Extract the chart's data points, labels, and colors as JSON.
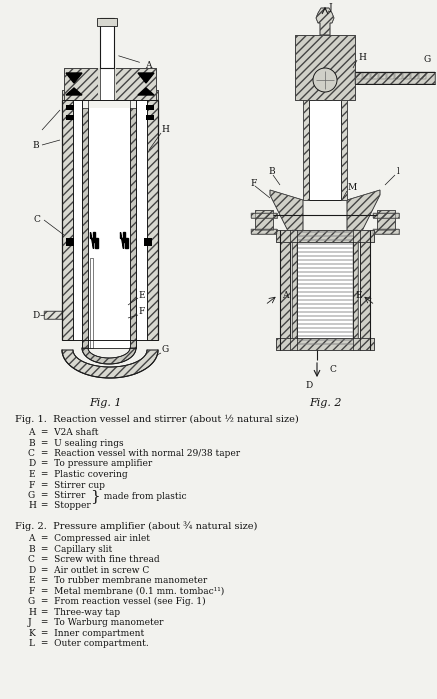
{
  "fig_width": 4.37,
  "fig_height": 6.99,
  "dpi": 100,
  "bg_color": "#f2f2ee",
  "line_color": "#1a1a1a",
  "hatch_color": "#444444",
  "fig1_caption": "Fig. 1",
  "fig2_caption": "Fig. 2",
  "main_caption_1": "Fig. 1.  Reaction vessel and stirrer (about ½ natural size)",
  "legend_1": [
    [
      "A",
      " =  V2A shaft"
    ],
    [
      "B",
      " =  U sealing rings"
    ],
    [
      "C",
      " =  Reaction vessel with normal 29/38 taper"
    ],
    [
      "D",
      " =  To pressure amplifier"
    ],
    [
      "E",
      " =  Plastic covering"
    ],
    [
      "F",
      " =  Stirrer cup"
    ],
    [
      "G",
      " =  Stirrer"
    ],
    [
      "H",
      " =  Stopper"
    ]
  ],
  "gh_note": "  made from plastic",
  "main_caption_2": "Fig. 2.  Pressure amplifier (about ¾ natural size)",
  "legend_2": [
    [
      "A",
      " =  Compressed air inlet"
    ],
    [
      "B",
      " =  Capillary slit"
    ],
    [
      "C",
      " =  Screw with fine thread"
    ],
    [
      "D",
      " =  Air outlet in screw C"
    ],
    [
      "E",
      " =  To rubber membrane manometer"
    ],
    [
      "F",
      " =  Metal membrane (0.1 mm. tombac¹¹)"
    ],
    [
      "G",
      " =  From reaction vessel (see Fig. 1)"
    ],
    [
      "H",
      " =  Three-way tap"
    ],
    [
      "J",
      " =  To Warburg manometer"
    ],
    [
      "K",
      " =  Inner compartment"
    ],
    [
      "L",
      " =  Outer compartment."
    ]
  ],
  "text_color": "#111111",
  "caption_fontsize": 7.0,
  "label_fontsize": 6.5,
  "fig_label_fontsize": 8.0,
  "legend_fontsize": 6.5
}
